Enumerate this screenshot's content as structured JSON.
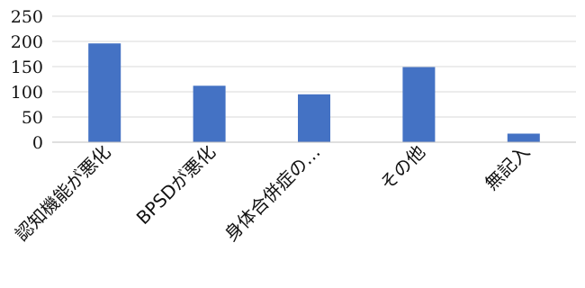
{
  "chart_data": {
    "type": "bar",
    "categories": [
      "認知機能が悪化",
      "BPSDが悪化",
      "身体合併症の…",
      "その他",
      "無記入"
    ],
    "values": [
      196,
      112,
      95,
      149,
      17
    ],
    "ylim": [
      0,
      250
    ],
    "yticks": [
      0,
      50,
      100,
      150,
      200,
      250
    ],
    "grid": true,
    "bar_color": "#4472c4"
  }
}
